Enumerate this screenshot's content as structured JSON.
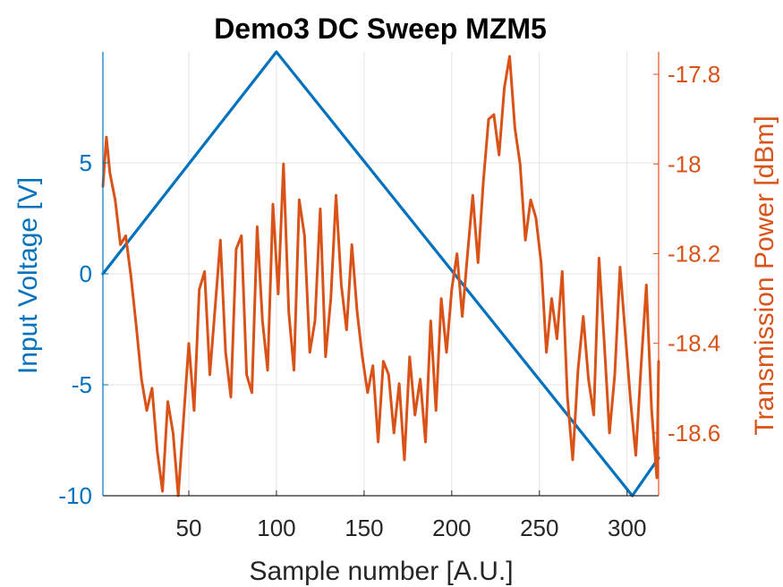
{
  "chart_data": {
    "type": "line",
    "title": "Demo3 DC Sweep MZM5",
    "xlabel": "Sample number [A.U.]",
    "ylabel_left": "Input Voltage [V]",
    "ylabel_right": "Transmission Power [dBm]",
    "xlim": [
      1,
      318
    ],
    "ylim_left": [
      -10,
      10
    ],
    "ylim_right": [
      -18.74,
      -17.75
    ],
    "x_ticks": [
      50,
      100,
      150,
      200,
      250,
      300
    ],
    "y_left_ticks": [
      -10,
      -5,
      0,
      5
    ],
    "y_left_tick_labels": [
      "-10",
      "-5",
      "0",
      "5"
    ],
    "y_right_ticks": [
      -18.6,
      -18.4,
      -18.2,
      -18,
      -17.8
    ],
    "y_right_tick_labels": [
      "-18.6",
      "-18.4",
      "-18.2",
      "-18",
      "-17.8"
    ],
    "grid": true,
    "colors": {
      "left": "#0072BD",
      "right": "#D95319",
      "grid": "#e3e3e3",
      "frame": "#262626"
    },
    "series": [
      {
        "axis": "left",
        "color": "#0072BD",
        "x": [
          1,
          100,
          303,
          318
        ],
        "values": [
          0,
          10,
          -10,
          -8.3
        ]
      },
      {
        "axis": "right",
        "color": "#D95319",
        "x": [
          1,
          3,
          5,
          8,
          11,
          14,
          17,
          20,
          23,
          26,
          29,
          32,
          35,
          38,
          41,
          44,
          47,
          50,
          53,
          56,
          59,
          62,
          65,
          68,
          71,
          74,
          77,
          80,
          83,
          86,
          89,
          92,
          95,
          98,
          101,
          104,
          107,
          110,
          113,
          116,
          119,
          122,
          125,
          128,
          131,
          134,
          137,
          140,
          143,
          146,
          149,
          152,
          155,
          158,
          161,
          164,
          167,
          170,
          173,
          176,
          179,
          182,
          185,
          188,
          191,
          194,
          197,
          200,
          203,
          206,
          209,
          212,
          215,
          218,
          221,
          224,
          227,
          230,
          233,
          236,
          239,
          242,
          245,
          248,
          251,
          254,
          257,
          260,
          263,
          266,
          269,
          272,
          275,
          278,
          281,
          284,
          287,
          290,
          293,
          296,
          299,
          302,
          305,
          308,
          311,
          314,
          317,
          318
        ],
        "values": [
          -18.05,
          -17.94,
          -18.02,
          -18.08,
          -18.18,
          -18.16,
          -18.25,
          -18.36,
          -18.48,
          -18.55,
          -18.5,
          -18.64,
          -18.73,
          -18.53,
          -18.6,
          -18.74,
          -18.57,
          -18.4,
          -18.55,
          -18.28,
          -18.24,
          -18.47,
          -18.32,
          -18.17,
          -18.42,
          -18.52,
          -18.19,
          -18.16,
          -18.47,
          -18.51,
          -18.14,
          -18.35,
          -18.46,
          -18.09,
          -18.29,
          -18.0,
          -18.33,
          -18.46,
          -18.08,
          -18.16,
          -18.42,
          -18.35,
          -18.1,
          -18.43,
          -18.3,
          -18.07,
          -18.27,
          -18.37,
          -18.18,
          -18.33,
          -18.43,
          -18.51,
          -18.45,
          -18.62,
          -18.44,
          -18.47,
          -18.6,
          -18.49,
          -18.66,
          -18.43,
          -18.56,
          -18.48,
          -18.62,
          -18.35,
          -18.55,
          -18.3,
          -18.42,
          -18.28,
          -18.2,
          -18.34,
          -18.2,
          -18.07,
          -18.22,
          -18.04,
          -17.9,
          -17.89,
          -17.98,
          -17.83,
          -17.76,
          -17.92,
          -18.0,
          -18.17,
          -18.08,
          -18.12,
          -18.22,
          -18.42,
          -18.3,
          -18.39,
          -18.24,
          -18.52,
          -18.66,
          -18.46,
          -18.34,
          -18.48,
          -18.56,
          -18.21,
          -18.4,
          -18.6,
          -18.47,
          -18.23,
          -18.38,
          -18.53,
          -18.65,
          -18.45,
          -18.27,
          -18.55,
          -18.7,
          -18.44
        ]
      }
    ]
  }
}
